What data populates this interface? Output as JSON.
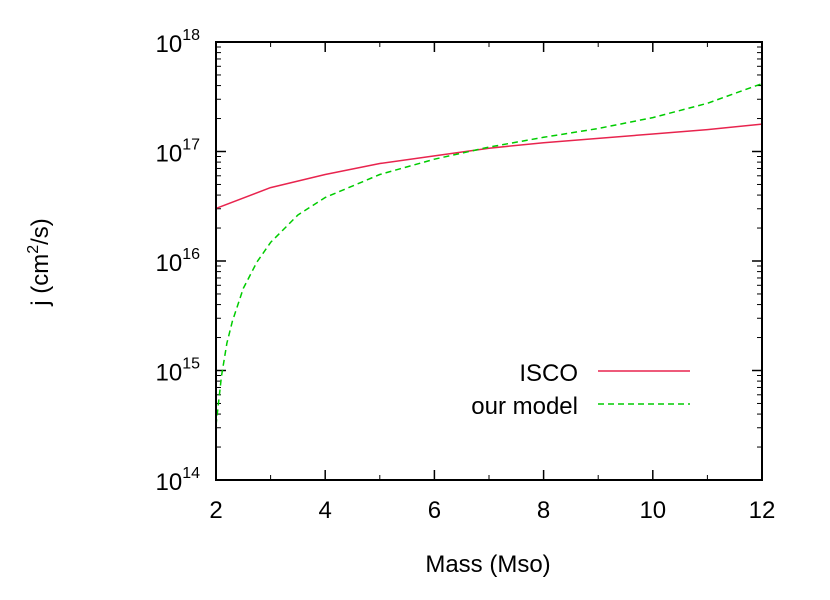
{
  "chart_data": {
    "type": "line",
    "title": "",
    "xlabel": "Mass (Mso)",
    "ylabel_parts": {
      "prefix": "j (cm",
      "sup": "2",
      "suffix": "/s)"
    },
    "x_scale": "linear",
    "y_scale": "log",
    "xlim": [
      2,
      12
    ],
    "ylim_exponents": [
      14,
      18
    ],
    "x_ticks": [
      "2",
      "4",
      "6",
      "8",
      "10",
      "12"
    ],
    "y_ticks": [
      {
        "base": "10",
        "exp": "14"
      },
      {
        "base": "10",
        "exp": "15"
      },
      {
        "base": "10",
        "exp": "16"
      },
      {
        "base": "10",
        "exp": "17"
      },
      {
        "base": "10",
        "exp": "18"
      }
    ],
    "grid": false,
    "legend_position": "bottom-right",
    "series": [
      {
        "name": "ISCO",
        "color": "#e8244e",
        "dash": "solid",
        "x": [
          2,
          3,
          4,
          5,
          6,
          7,
          8,
          9,
          10,
          11,
          12
        ],
        "log10_y": [
          16.48,
          16.67,
          16.79,
          16.89,
          16.96,
          17.03,
          17.08,
          17.12,
          17.16,
          17.2,
          17.25
        ]
      },
      {
        "name": "our model",
        "color": "#00cc00",
        "dash": "dashed",
        "x": [
          2,
          2.1,
          2.2,
          2.3,
          2.5,
          2.75,
          3,
          3.5,
          4,
          5,
          6,
          7,
          8,
          9,
          10,
          11,
          12
        ],
        "log10_y": [
          14.5,
          14.95,
          15.25,
          15.45,
          15.75,
          15.99,
          16.17,
          16.42,
          16.58,
          16.79,
          16.93,
          17.04,
          17.13,
          17.21,
          17.31,
          17.44,
          17.62
        ]
      }
    ]
  }
}
